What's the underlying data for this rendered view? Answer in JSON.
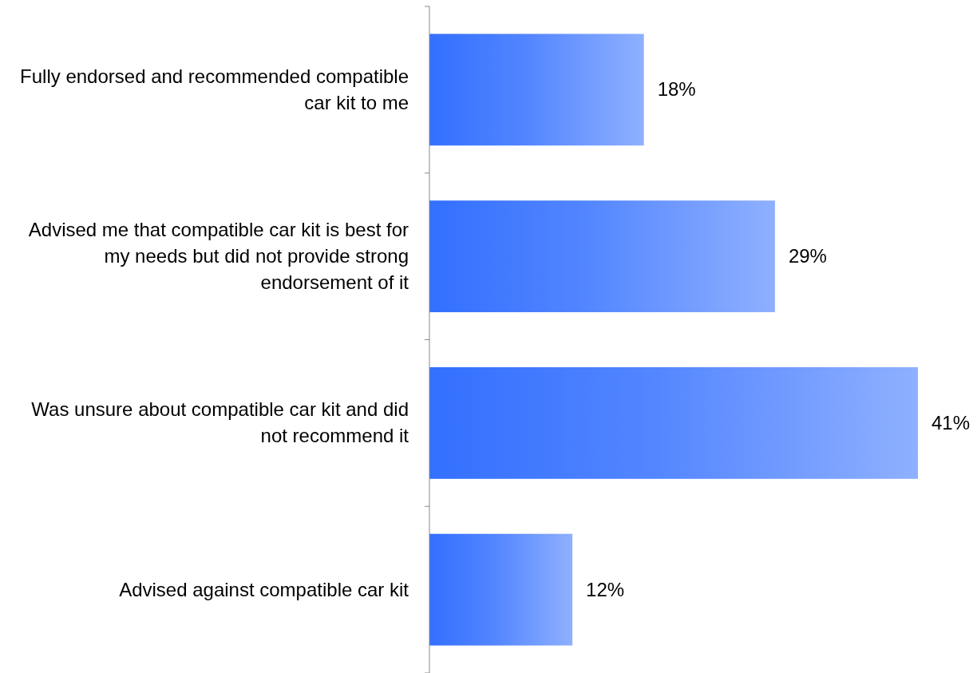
{
  "chart_data": {
    "type": "bar",
    "orientation": "horizontal",
    "categories": [
      "Fully endorsed and recommended compatible car kit to me",
      "Advised me that compatible car kit is best for my needs but did not provide strong endorsement of it",
      "Was unsure about compatible car kit and did not recommend it",
      "Advised against compatible car kit"
    ],
    "values": [
      18,
      29,
      41,
      12
    ],
    "value_labels": [
      "18%",
      "29%",
      "41%",
      "12%"
    ],
    "color": "#3370ff"
  }
}
